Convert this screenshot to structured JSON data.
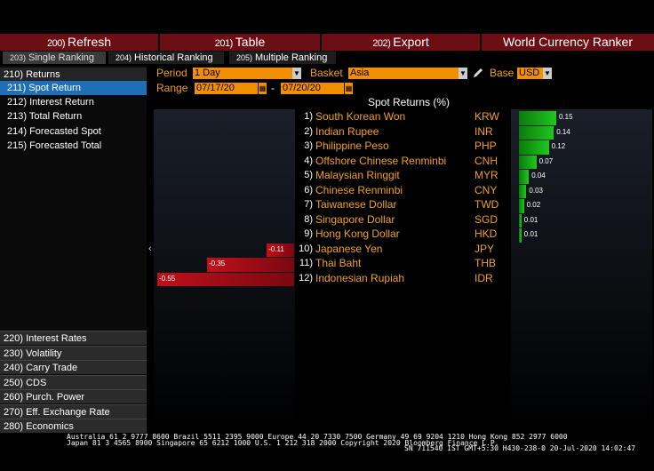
{
  "toolbar": {
    "refresh": {
      "num": "200)",
      "label": "Refresh"
    },
    "table": {
      "num": "201)",
      "label": "Table"
    },
    "export": {
      "num": "202)",
      "label": "Export"
    },
    "title": "World Currency Ranker"
  },
  "tabs": [
    {
      "num": "203)",
      "label": "Single Ranking"
    },
    {
      "num": "204)",
      "label": "Historical Ranking"
    },
    {
      "num": "205)",
      "label": "Multiple Ranking"
    }
  ],
  "sidebar": {
    "header": "210) Returns",
    "items": [
      "211) Spot Return",
      "212) Interest Return",
      "213) Total Return",
      "214) Forecasted Spot",
      "215) Forecasted Total"
    ],
    "sections": [
      "220) Interest Rates",
      "230) Volatility",
      "240) Carry Trade",
      "250) CDS",
      "260) Purch. Power",
      "270) Eff. Exchange Rate",
      "280) Economics"
    ]
  },
  "controls": {
    "period_label": "Period",
    "period_value": "1 Day",
    "basket_label": "Basket",
    "basket_value": "Asia",
    "base_label": "Base",
    "base_value": "USD",
    "range_label": "Range",
    "range_start": "07/17/20",
    "range_sep": "-",
    "range_end": "07/20/20"
  },
  "chart_data": {
    "type": "bar",
    "title": "Spot Returns (%)",
    "rows": [
      {
        "rank": "1)",
        "name": "South Korean Won",
        "code": "KRW",
        "value": 0.15
      },
      {
        "rank": "2)",
        "name": "Indian Rupee",
        "code": "INR",
        "value": 0.14
      },
      {
        "rank": "3)",
        "name": "Philippine Peso",
        "code": "PHP",
        "value": 0.12
      },
      {
        "rank": "4)",
        "name": "Offshore Chinese Renminbi",
        "code": "CNH",
        "value": 0.07
      },
      {
        "rank": "5)",
        "name": "Malaysian Ringgit",
        "code": "MYR",
        "value": 0.04
      },
      {
        "rank": "6)",
        "name": "Chinese Renminbi",
        "code": "CNY",
        "value": 0.03
      },
      {
        "rank": "7)",
        "name": "Taiwanese Dollar",
        "code": "TWD",
        "value": 0.02
      },
      {
        "rank": "8)",
        "name": "Singapore Dollar",
        "code": "SGD",
        "value": 0.01
      },
      {
        "rank": "9)",
        "name": "Hong Kong Dollar",
        "code": "HKD",
        "value": 0.01
      },
      {
        "rank": "10)",
        "name": "Japanese Yen",
        "code": "JPY",
        "value": -0.11
      },
      {
        "rank": "11)",
        "name": "Thai Baht",
        "code": "THB",
        "value": -0.35
      },
      {
        "rank": "12)",
        "name": "Indonesian Rupiah",
        "code": "IDR",
        "value": -0.55
      }
    ],
    "value_labels": [
      "0.15",
      "0.14",
      "0.12",
      "0.07",
      "0.04",
      "0.03",
      "0.02",
      "0.01",
      "0.01",
      "-0.11",
      "-0.35",
      "-0.55"
    ]
  },
  "footer": {
    "line1": "Australia 61 2 9777 8600 Brazil 5511 2395 9000 Europe 44 20 7330 7500 Germany 49 69 9204 1210 Hong Kong 852 2977 6000",
    "line2": "Japan 81 3 4565 8900      Singapore 65 6212 1000      U.S. 1 212 318 2000          Copyright 2020 Bloomberg Finance L.P.",
    "line3": "SN 711540 IST  GMT+5:30 H430-238-0 20-Jul-2020 14:02:47"
  },
  "colors": {
    "positive": "#1ec81e",
    "negative": "#c0101a",
    "accent": "#f0a020",
    "toolbar": "#6b0f14",
    "selected": "#1e6fb8"
  }
}
